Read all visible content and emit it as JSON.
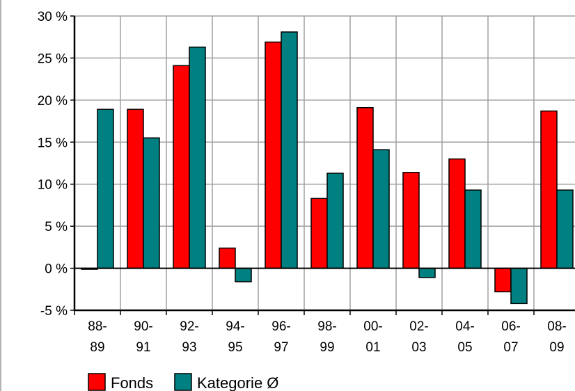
{
  "chart_data": {
    "type": "bar",
    "categories": [
      [
        "88-",
        "89"
      ],
      [
        "90-",
        "91"
      ],
      [
        "92-",
        "93"
      ],
      [
        "94-",
        "95"
      ],
      [
        "96-",
        "97"
      ],
      [
        "98-",
        "99"
      ],
      [
        "00-",
        "01"
      ],
      [
        "02-",
        "03"
      ],
      [
        "04-",
        "05"
      ],
      [
        "06-",
        "07"
      ],
      [
        "08-",
        "09"
      ]
    ],
    "series": [
      {
        "name": "Fonds",
        "color": "#ff0000",
        "values": [
          0,
          18.9,
          24.1,
          2.4,
          26.9,
          8.3,
          19.1,
          11.4,
          13.0,
          -2.8,
          18.7
        ]
      },
      {
        "name": "Kategorie Ø",
        "color": "#008080",
        "values": [
          18.9,
          15.5,
          26.3,
          -1.6,
          28.1,
          11.3,
          14.1,
          -1.1,
          9.3,
          -4.2,
          9.3
        ]
      }
    ],
    "ylim": [
      -5,
      30
    ],
    "yticks": [
      {
        "value": -5,
        "label": "-5 %"
      },
      {
        "value": 0,
        "label": "0 %"
      },
      {
        "value": 5,
        "label": "5 %"
      },
      {
        "value": 10,
        "label": "10 %"
      },
      {
        "value": 15,
        "label": "15 %"
      },
      {
        "value": 20,
        "label": "20 %"
      },
      {
        "value": 25,
        "label": "25 %"
      },
      {
        "value": 30,
        "label": "30 %"
      }
    ],
    "grid": true,
    "legend": "bottom-left"
  }
}
